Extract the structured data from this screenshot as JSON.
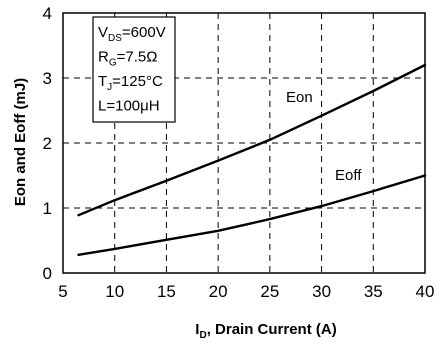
{
  "chart_data": {
    "type": "line",
    "xlabel": {
      "main": "I",
      "sub": "D",
      "rest": ", Drain Current (A)"
    },
    "ylabel": "Eon and Eoff (mJ)",
    "xlim": [
      5,
      40
    ],
    "ylim": [
      0,
      4
    ],
    "x_ticks": [
      5,
      10,
      15,
      20,
      25,
      30,
      35,
      40
    ],
    "y_ticks": [
      0,
      1,
      2,
      3,
      4
    ],
    "grid": true,
    "conditions": [
      {
        "main": "V",
        "sub": "DS",
        "rest": "=600V"
      },
      {
        "main": "R",
        "sub": "G",
        "rest": "=7.5Ω"
      },
      {
        "main": "T",
        "sub": "J",
        "rest": "=125°C"
      },
      {
        "main": "L",
        "sub": "",
        "rest": "=100μH"
      }
    ],
    "series": [
      {
        "name": "Eon",
        "x": [
          6.5,
          10,
          15,
          20,
          25,
          30,
          35,
          40
        ],
        "y": [
          0.89,
          1.12,
          1.42,
          1.73,
          2.05,
          2.42,
          2.8,
          3.2
        ]
      },
      {
        "name": "Eoff",
        "x": [
          6.5,
          10,
          15,
          20,
          25,
          30,
          35,
          40
        ],
        "y": [
          0.28,
          0.37,
          0.51,
          0.65,
          0.83,
          1.03,
          1.26,
          1.5
        ]
      }
    ]
  }
}
